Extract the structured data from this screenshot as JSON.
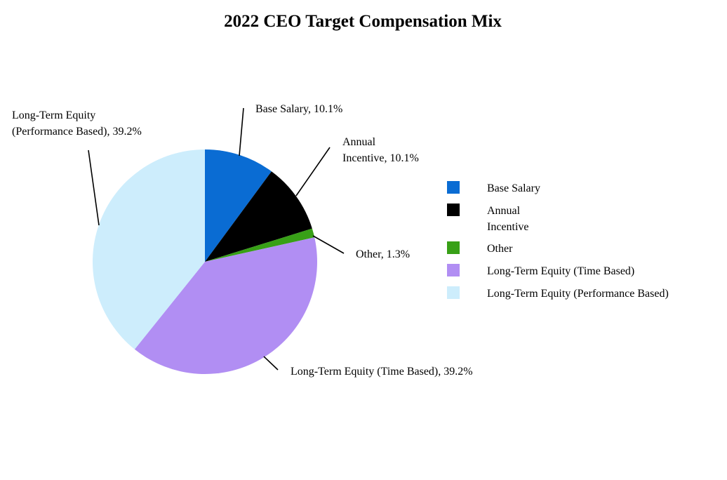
{
  "chart_data": {
    "type": "pie",
    "title": "2022 CEO Target Compensation Mix",
    "legend_position": "right",
    "slices": [
      {
        "name": "Base Salary",
        "value": 10.1,
        "color": "#0A6CD3",
        "label_lines": [
          "Base Salary, 10.1%"
        ],
        "legend_lines": [
          "Base Salary"
        ]
      },
      {
        "name": "Annual Incentive",
        "value": 10.1,
        "color": "#000000",
        "label_lines": [
          "Annual",
          "Incentive, 10.1%"
        ],
        "legend_lines": [
          "Annual",
          "Incentive"
        ]
      },
      {
        "name": "Other",
        "value": 1.3,
        "color": "#38A017",
        "label_lines": [
          "Other, 1.3%"
        ],
        "legend_lines": [
          "Other"
        ]
      },
      {
        "name": "Long-Term Equity (Time Based)",
        "value": 39.2,
        "color": "#B18EF3",
        "label_lines": [
          "Long-Term Equity (Time Based), 39.2%"
        ],
        "legend_lines": [
          "Long-Term Equity (Time Based)"
        ]
      },
      {
        "name": "Long-Term Equity (Performance Based)",
        "value": 39.2,
        "color": "#CDEDFC",
        "label_lines": [
          "Long-Term Equity",
          "(Performance Based), 39.2%"
        ],
        "legend_lines": [
          "Long-Term Equity (Performance Based)"
        ]
      }
    ]
  }
}
